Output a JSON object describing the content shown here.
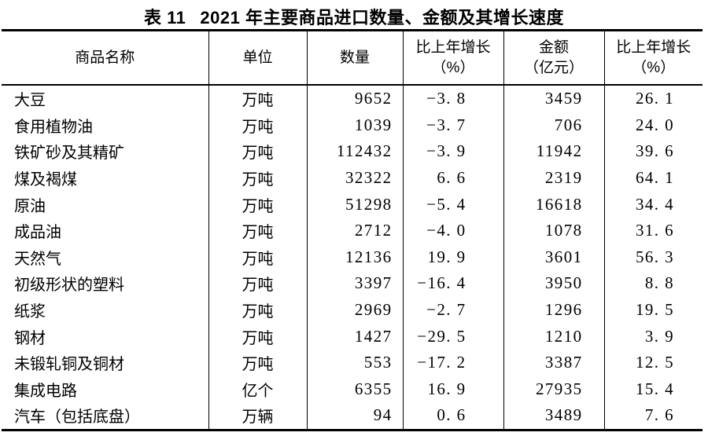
{
  "colors": {
    "background": "#ffffff",
    "text": "#000000",
    "rule": "#000000"
  },
  "title": {
    "prefix": "表 11",
    "text": "2021 年主要商品进口数量、金额及其增长速度"
  },
  "table": {
    "columns": [
      {
        "key": "name",
        "header_lines": [
          "商品名称"
        ]
      },
      {
        "key": "unit",
        "header_lines": [
          "单位"
        ]
      },
      {
        "key": "quantity",
        "header_lines": [
          "数量"
        ]
      },
      {
        "key": "quantity_growth",
        "header_lines": [
          "比上年增长",
          "（%）"
        ]
      },
      {
        "key": "amount",
        "header_lines": [
          "金额",
          "（亿元）"
        ]
      },
      {
        "key": "amount_growth",
        "header_lines": [
          "比上年增长",
          "（%）"
        ]
      }
    ],
    "rows": [
      {
        "name": "大豆",
        "unit": "万吨",
        "quantity": "9652",
        "quantity_growth": "-3.8",
        "amount": "3459",
        "amount_growth": "26.1"
      },
      {
        "name": "食用植物油",
        "unit": "万吨",
        "quantity": "1039",
        "quantity_growth": "-3.7",
        "amount": "706",
        "amount_growth": "24.0"
      },
      {
        "name": "铁矿砂及其精矿",
        "unit": "万吨",
        "quantity": "112432",
        "quantity_growth": "-3.9",
        "amount": "11942",
        "amount_growth": "39.6"
      },
      {
        "name": "煤及褐煤",
        "unit": "万吨",
        "quantity": "32322",
        "quantity_growth": "6.6",
        "amount": "2319",
        "amount_growth": "64.1"
      },
      {
        "name": "原油",
        "unit": "万吨",
        "quantity": "51298",
        "quantity_growth": "-5.4",
        "amount": "16618",
        "amount_growth": "34.4"
      },
      {
        "name": "成品油",
        "unit": "万吨",
        "quantity": "2712",
        "quantity_growth": "-4.0",
        "amount": "1078",
        "amount_growth": "31.6"
      },
      {
        "name": "天然气",
        "unit": "万吨",
        "quantity": "12136",
        "quantity_growth": "19.9",
        "amount": "3601",
        "amount_growth": "56.3"
      },
      {
        "name": "初级形状的塑料",
        "unit": "万吨",
        "quantity": "3397",
        "quantity_growth": "-16.4",
        "amount": "3950",
        "amount_growth": "8.8"
      },
      {
        "name": "纸浆",
        "unit": "万吨",
        "quantity": "2969",
        "quantity_growth": "-2.7",
        "amount": "1296",
        "amount_growth": "19.5"
      },
      {
        "name": "钢材",
        "unit": "万吨",
        "quantity": "1427",
        "quantity_growth": "-29.5",
        "amount": "1210",
        "amount_growth": "3.9"
      },
      {
        "name": "未锻轧铜及铜材",
        "unit": "万吨",
        "quantity": "553",
        "quantity_growth": "-17.2",
        "amount": "3387",
        "amount_growth": "12.5"
      },
      {
        "name": "集成电路",
        "unit": "亿个",
        "quantity": "6355",
        "quantity_growth": "16.9",
        "amount": "27935",
        "amount_growth": "15.4"
      },
      {
        "name": "汽车（包括底盘）",
        "unit": "万辆",
        "quantity": "94",
        "quantity_growth": "0.6",
        "amount": "3489",
        "amount_growth": "7.6"
      }
    ]
  }
}
